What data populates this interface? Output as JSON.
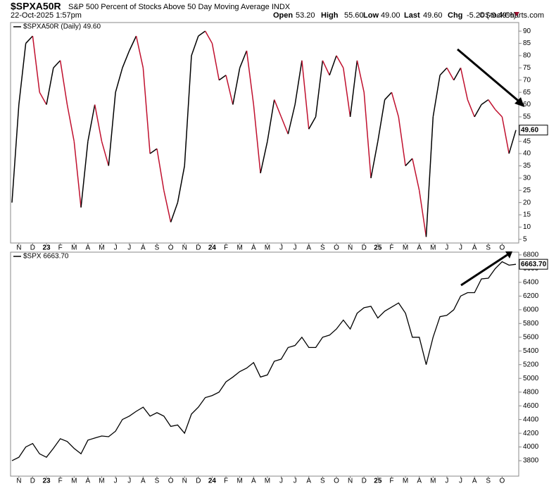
{
  "header": {
    "symbol": "$SPXA50R",
    "description": "S&P 500 Percent of Stocks Above 50 Day Moving Average INDX",
    "timestamp": "22-Oct-2025 1:57pm",
    "quote": [
      {
        "label": "Open",
        "value": "53.20"
      },
      {
        "label": "High",
        "value": "55.60"
      },
      {
        "label": "Low",
        "value": "49.00"
      },
      {
        "label": "Last",
        "value": "49.60"
      },
      {
        "label": "Chg",
        "value": "-5.20 (-9.49%)"
      }
    ],
    "credit": "©StockCharts.com"
  },
  "chart_data": [
    {
      "type": "line",
      "categories": [
        null,
        "N",
        null,
        "D",
        null,
        "23",
        null,
        "F",
        null,
        "M",
        null,
        "A",
        null,
        "M",
        null,
        "J",
        null,
        "J",
        null,
        "A",
        null,
        "S",
        null,
        "O",
        null,
        "N",
        null,
        "D",
        null,
        "24",
        null,
        "F",
        null,
        "M",
        null,
        "A",
        null,
        "M",
        null,
        "J",
        null,
        "J",
        null,
        "A",
        null,
        "S",
        null,
        "O",
        null,
        "N",
        null,
        "D",
        null,
        "25",
        null,
        "F",
        null,
        "M",
        null,
        "A",
        null,
        "M",
        null,
        "J",
        null,
        "J",
        null,
        "A",
        null,
        "S",
        null,
        "O",
        null,
        null
      ],
      "series": [
        {
          "name": "$SPXA50R (Daily) 49.60",
          "last_label": "49.60",
          "up_color": "#000000",
          "down_color": "#c0102e",
          "values": [
            20,
            60,
            85,
            88,
            65,
            60,
            75,
            78,
            60,
            45,
            18,
            45,
            60,
            45,
            35,
            65,
            75,
            82,
            88,
            75,
            40,
            42,
            25,
            12,
            20,
            35,
            80,
            88,
            90,
            85,
            70,
            72,
            60,
            75,
            82,
            60,
            32,
            45,
            62,
            55,
            48,
            60,
            78,
            50,
            55,
            78,
            72,
            80,
            75,
            55,
            78,
            65,
            30,
            45,
            62,
            65,
            55,
            35,
            38,
            25,
            6,
            55,
            72,
            75,
            70,
            75,
            62,
            55,
            60,
            62,
            58,
            55,
            40,
            49.6
          ]
        }
      ],
      "ylim": [
        3.5,
        93.5
      ],
      "yticks": [
        5,
        10,
        15,
        20,
        25,
        30,
        35,
        40,
        45,
        50,
        55,
        60,
        65,
        70,
        75,
        80,
        85,
        90
      ],
      "grid": false
    },
    {
      "type": "line",
      "categories": [
        null,
        "N",
        null,
        "D",
        null,
        "23",
        null,
        "F",
        null,
        "M",
        null,
        "A",
        null,
        "M",
        null,
        "J",
        null,
        "J",
        null,
        "A",
        null,
        "S",
        null,
        "O",
        null,
        "N",
        null,
        "D",
        null,
        "24",
        null,
        "F",
        null,
        "M",
        null,
        "A",
        null,
        "M",
        null,
        "J",
        null,
        "J",
        null,
        "A",
        null,
        "S",
        null,
        "O",
        null,
        "N",
        null,
        "D",
        null,
        "25",
        null,
        "F",
        null,
        "M",
        null,
        "A",
        null,
        "M",
        null,
        "J",
        null,
        "J",
        null,
        "A",
        null,
        "S",
        null,
        "O",
        null,
        null
      ],
      "series": [
        {
          "name": "$SPX 6663.70",
          "last_label": "6663.70",
          "color": "#000000",
          "values": [
            3800,
            3850,
            4000,
            4050,
            3900,
            3850,
            3980,
            4120,
            4080,
            3980,
            3900,
            4100,
            4130,
            4160,
            4150,
            4230,
            4400,
            4450,
            4520,
            4580,
            4450,
            4500,
            4450,
            4300,
            4320,
            4200,
            4480,
            4580,
            4720,
            4750,
            4800,
            4950,
            5020,
            5100,
            5150,
            5230,
            5020,
            5050,
            5250,
            5280,
            5450,
            5480,
            5600,
            5450,
            5450,
            5600,
            5630,
            5720,
            5850,
            5720,
            5950,
            6030,
            6050,
            5880,
            5980,
            6040,
            6100,
            5950,
            5600,
            5600,
            5200,
            5600,
            5900,
            5920,
            6000,
            6200,
            6250,
            6250,
            6450,
            6460,
            6600,
            6700,
            6650,
            6663.7
          ]
        }
      ],
      "ylim": [
        3575,
        6840
      ],
      "yticks": [
        3800,
        4000,
        4200,
        4400,
        4600,
        4800,
        5000,
        5200,
        5400,
        5600,
        5800,
        6000,
        6200,
        6400,
        6600,
        6800
      ],
      "grid": false
    }
  ]
}
